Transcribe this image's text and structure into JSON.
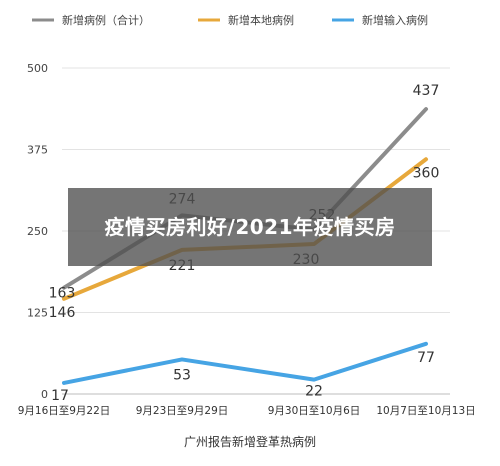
{
  "overlay_title": "疫情买房利好/2021年疫情买房",
  "chart_data": {
    "type": "line",
    "title": "",
    "xlabel": "广州报告新增登革热病例",
    "ylabel": "",
    "categories": [
      "9月16日至9月22日",
      "9月23日至9月29日",
      "9月30日至10月6日",
      "10月7日至10月13日"
    ],
    "ylim": [
      0,
      500
    ],
    "yticks": [
      0,
      125,
      250,
      375,
      500
    ],
    "grid": true,
    "legend_position": "top",
    "series": [
      {
        "name": "新增病例（合计）",
        "values": [
          163,
          274,
          252,
          437
        ],
        "color": "#8c8c8c"
      },
      {
        "name": "新增本地病例",
        "values": [
          146,
          221,
          230,
          360
        ],
        "color": "#e7a83b"
      },
      {
        "name": "新增输入病例",
        "values": [
          17,
          53,
          22,
          77
        ],
        "color": "#46a4e4"
      }
    ]
  }
}
